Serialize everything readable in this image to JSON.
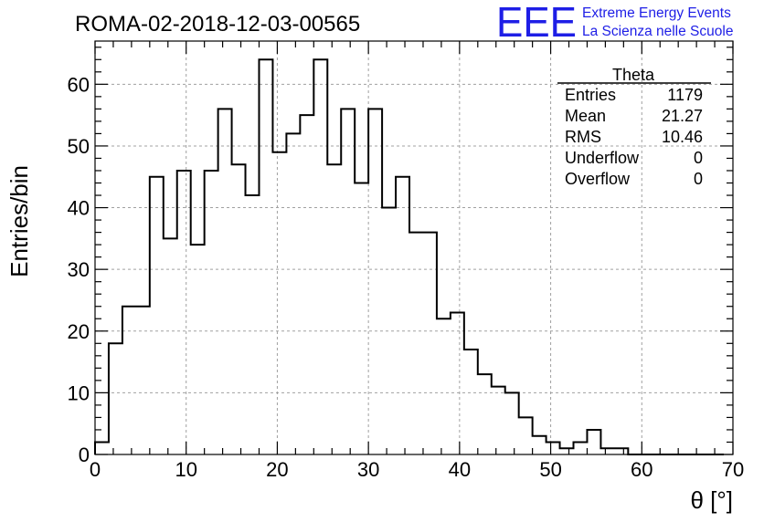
{
  "header": {
    "run_title": "ROMA-02-2018-12-03-00565",
    "logo_mark": "EEE",
    "logo_line1": "Extreme Energy Events",
    "logo_line2": "La Scienza nelle Scuole",
    "logo_color": "#1e1ee6"
  },
  "stats_box": {
    "title": "Theta",
    "rows": [
      {
        "label": "Entries",
        "value": "1179"
      },
      {
        "label": "Mean",
        "value": "21.27"
      },
      {
        "label": "RMS",
        "value": "10.46"
      },
      {
        "label": "Underflow",
        "value": "0"
      },
      {
        "label": "Overflow",
        "value": "0"
      }
    ]
  },
  "chart_data": {
    "type": "bar",
    "style": "step-histogram",
    "title": "ROMA-02-2018-12-03-00565",
    "xlabel": "θ [°]",
    "ylabel": "Entries/bin",
    "xlim": [
      0,
      70
    ],
    "ylim": [
      0,
      67
    ],
    "bin_width": 1.5,
    "x_start": 0,
    "x_ticks": [
      0,
      10,
      20,
      30,
      40,
      50,
      60,
      70
    ],
    "y_ticks": [
      0,
      10,
      20,
      30,
      40,
      50,
      60
    ],
    "grid": true,
    "series": [
      {
        "values": [
          2,
          18,
          24,
          24,
          45,
          35,
          46,
          34,
          46,
          56,
          47,
          42,
          64,
          49,
          52,
          55,
          64,
          47,
          56,
          44,
          56,
          40,
          45,
          36,
          36,
          22,
          23,
          17,
          13,
          11,
          10,
          6,
          3,
          2,
          1,
          2,
          4,
          1,
          1,
          0,
          0,
          0,
          0,
          0,
          0,
          0
        ]
      }
    ]
  }
}
